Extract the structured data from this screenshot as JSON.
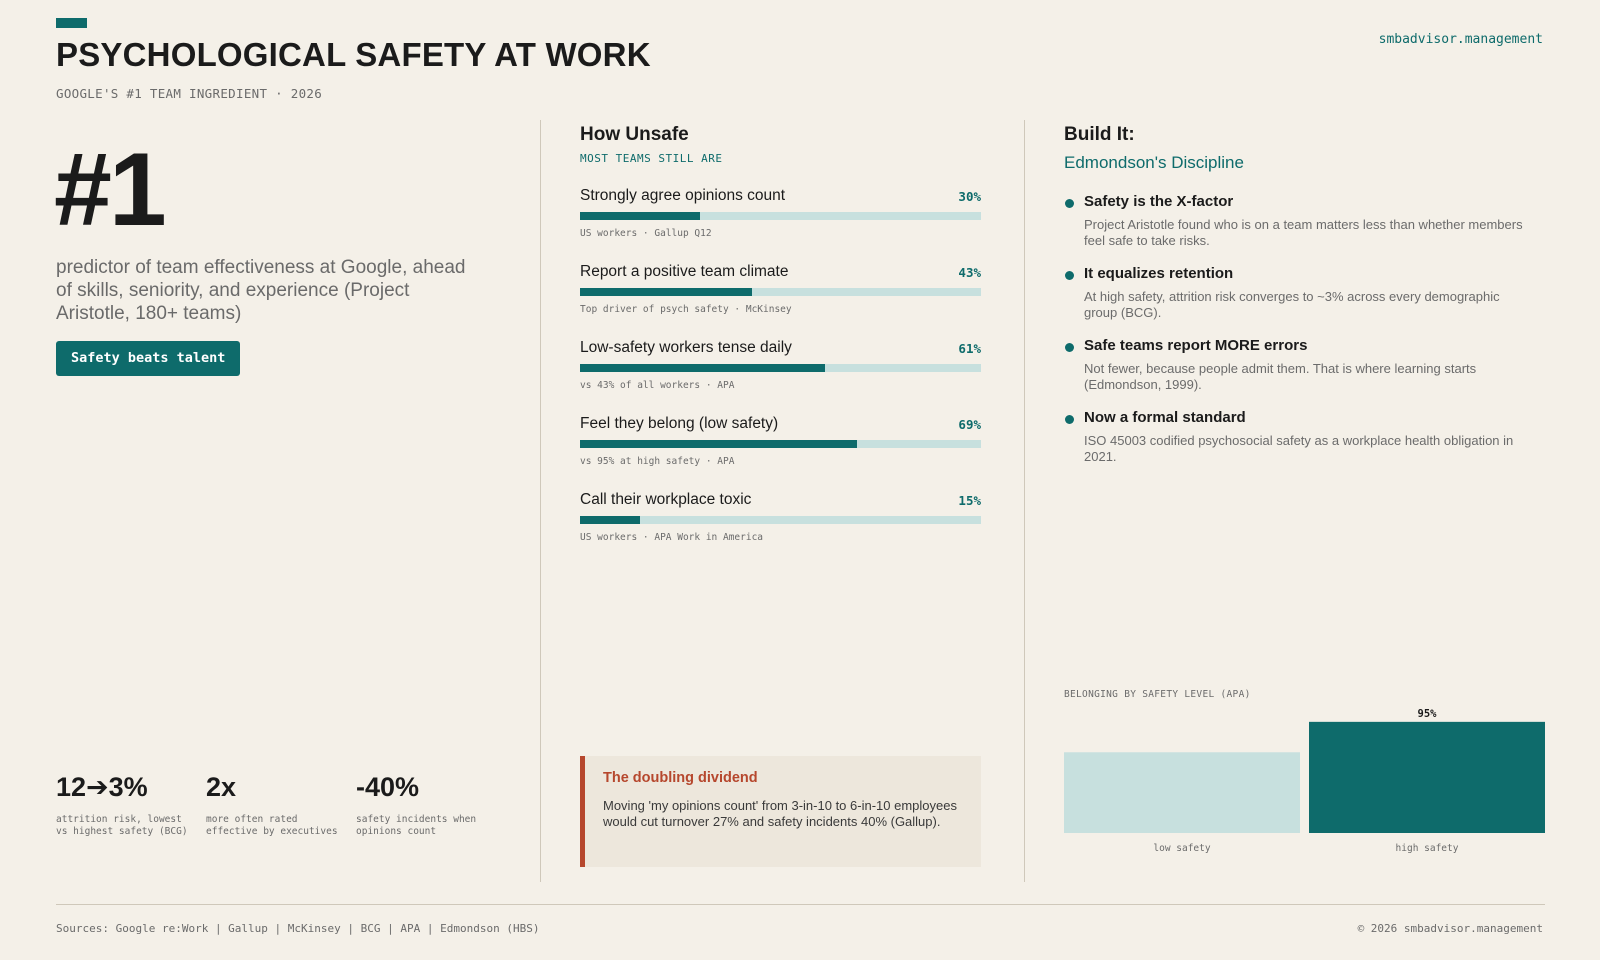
{
  "header": {
    "title": "PSYCHOLOGICAL SAFETY AT WORK",
    "subtitle": "GOOGLE'S #1 TEAM INGREDIENT · 2026",
    "site": "smbadvisor.management",
    "accent_color": "#0e6b6b"
  },
  "left": {
    "hero_number": "#1",
    "hero_description": "predictor of team effectiveness at Google, ahead of skills, seniority, and experience (Project Aristotle, 180+ teams)",
    "badge": "Safety beats talent",
    "stats": [
      {
        "value": "12➔3%",
        "caption": "attrition risk, lowest vs highest safety (BCG)"
      },
      {
        "value": "2x",
        "caption": "more often rated effective by executives"
      },
      {
        "value": "-40%",
        "caption": "safety incidents when opinions count"
      }
    ]
  },
  "middle": {
    "title": "How Unsafe",
    "kicker": "MOST TEAMS STILL ARE",
    "callout": {
      "title": "The doubling dividend",
      "body": "Moving 'my opinions count' from 3-in-10 to 6-in-10 employees would cut turnover 27% and safety incidents 40% (Gallup).",
      "border_color": "#b6472d"
    }
  },
  "right": {
    "title": "Build It:",
    "subtitle": "Edmondson's Discipline",
    "points": [
      {
        "title": "Safety is the X-factor",
        "body": "Project Aristotle found who is on a team matters less than whether members feel safe to take risks."
      },
      {
        "title": "It equalizes retention",
        "body": "At high safety, attrition risk converges to ~3% across every demographic group (BCG)."
      },
      {
        "title": "Safe teams report MORE errors",
        "body": "Not fewer, because people admit them. That is where learning starts (Edmondson, 1999)."
      },
      {
        "title": "Now a formal standard",
        "body": "ISO 45003 codified psychosocial safety as a workplace health obligation in 2021."
      }
    ]
  },
  "chart_data": [
    {
      "type": "bar",
      "orientation": "horizontal",
      "categories": [
        "Strongly agree opinions count",
        "Report a positive team climate",
        "Low-safety workers tense daily",
        "Feel they belong (low safety)",
        "Call their workplace toxic"
      ],
      "values": [
        30,
        43,
        61,
        69,
        15
      ],
      "value_labels": [
        "30%",
        "43%",
        "61%",
        "69%",
        "15%"
      ],
      "sources": [
        "US workers · Gallup Q12",
        "Top driver of psych safety · McKinsey",
        "vs 43% of all workers · APA",
        "vs 95% at high safety · APA",
        "US workers · APA Work in America"
      ],
      "xlim": [
        0,
        100
      ],
      "colors": {
        "fill": "#0e6b6b",
        "track": "#c7e0de"
      }
    },
    {
      "type": "bar",
      "title": "BELONGING BY SAFETY LEVEL (APA)",
      "categories": [
        "low safety",
        "high safety"
      ],
      "values": [
        69,
        95
      ],
      "value_labels": [
        "",
        "95%"
      ],
      "ylim": [
        0,
        100
      ],
      "colors": [
        "#c7e0de",
        "#0e6b6b"
      ]
    }
  ],
  "footer": {
    "sources": "Sources: Google re:Work | Gallup | McKinsey | BCG | APA | Edmondson (HBS)",
    "copyright": "© 2026 smbadvisor.management"
  }
}
